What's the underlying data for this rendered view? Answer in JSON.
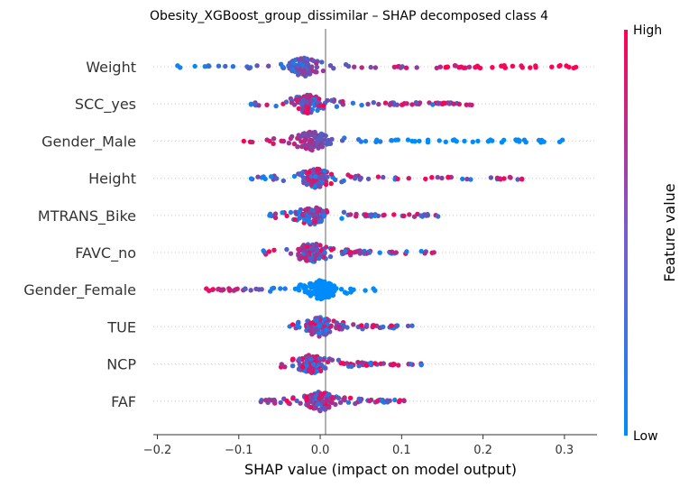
{
  "chart_data": {
    "type": "scatter",
    "subtype": "shap-beeswarm",
    "title": "Obesity_XGBoost_group_dissimilar – SHAP decomposed class 4",
    "xlabel": "SHAP value (impact on model output)",
    "xlim": [
      -0.205,
      0.34
    ],
    "xticks": [
      -0.2,
      -0.1,
      0.0,
      0.1,
      0.2,
      0.3
    ],
    "xtick_labels": [
      "−0.2",
      "−0.1",
      "0.0",
      "0.1",
      "0.2",
      "0.3"
    ],
    "colorbar": {
      "label": "Feature value",
      "high": "High",
      "low": "Low",
      "high_color": "#ff0052",
      "low_color": "#008bfb"
    },
    "features": [
      {
        "name": "Weight",
        "min": -0.18,
        "max": 0.315,
        "center": -0.02,
        "high": "right"
      },
      {
        "name": "SCC_yes",
        "min": -0.085,
        "max": 0.195,
        "center": -0.015,
        "high": "mixed"
      },
      {
        "name": "Gender_Male",
        "min": -0.095,
        "max": 0.3,
        "center": -0.01,
        "high": "left"
      },
      {
        "name": "Height",
        "min": -0.085,
        "max": 0.255,
        "center": -0.005,
        "high": "mixed"
      },
      {
        "name": "MTRANS_Bike",
        "min": -0.065,
        "max": 0.145,
        "center": -0.01,
        "high": "mixed"
      },
      {
        "name": "FAVC_no",
        "min": -0.07,
        "max": 0.14,
        "center": -0.01,
        "high": "mixed"
      },
      {
        "name": "Gender_Female",
        "min": -0.145,
        "max": 0.075,
        "center": 0.0,
        "high": "left"
      },
      {
        "name": "TUE",
        "min": -0.04,
        "max": 0.115,
        "center": 0.0,
        "high": "mixed"
      },
      {
        "name": "NCP",
        "min": -0.05,
        "max": 0.125,
        "center": -0.01,
        "high": "mixed"
      },
      {
        "name": "FAF",
        "min": -0.08,
        "max": 0.105,
        "center": 0.0,
        "high": "mixed"
      }
    ]
  }
}
